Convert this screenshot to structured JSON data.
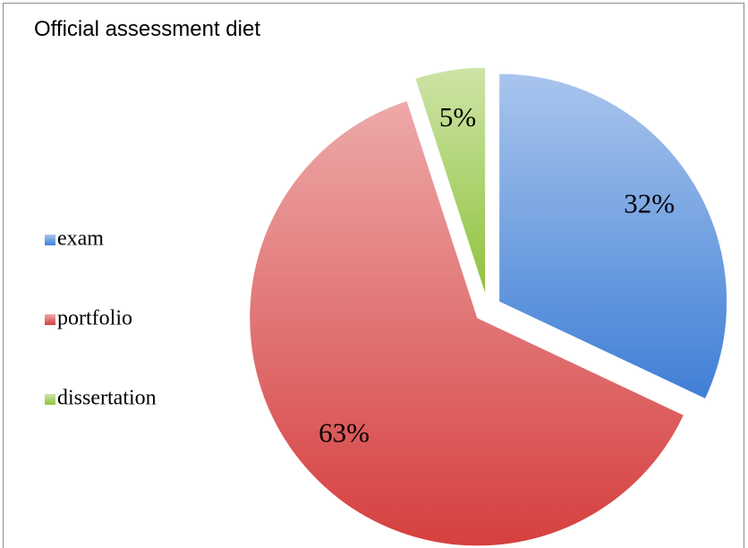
{
  "chart_data": {
    "type": "pie",
    "title": "Official assessment diet",
    "categories": [
      "exam",
      "portfolio",
      "dissertation"
    ],
    "values": [
      32,
      63,
      5
    ],
    "value_labels": [
      "32%",
      "63%",
      "5%"
    ],
    "colors": [
      "#3f7fd6",
      "#d63f3f",
      "#8fc23c"
    ],
    "legend": "left"
  }
}
